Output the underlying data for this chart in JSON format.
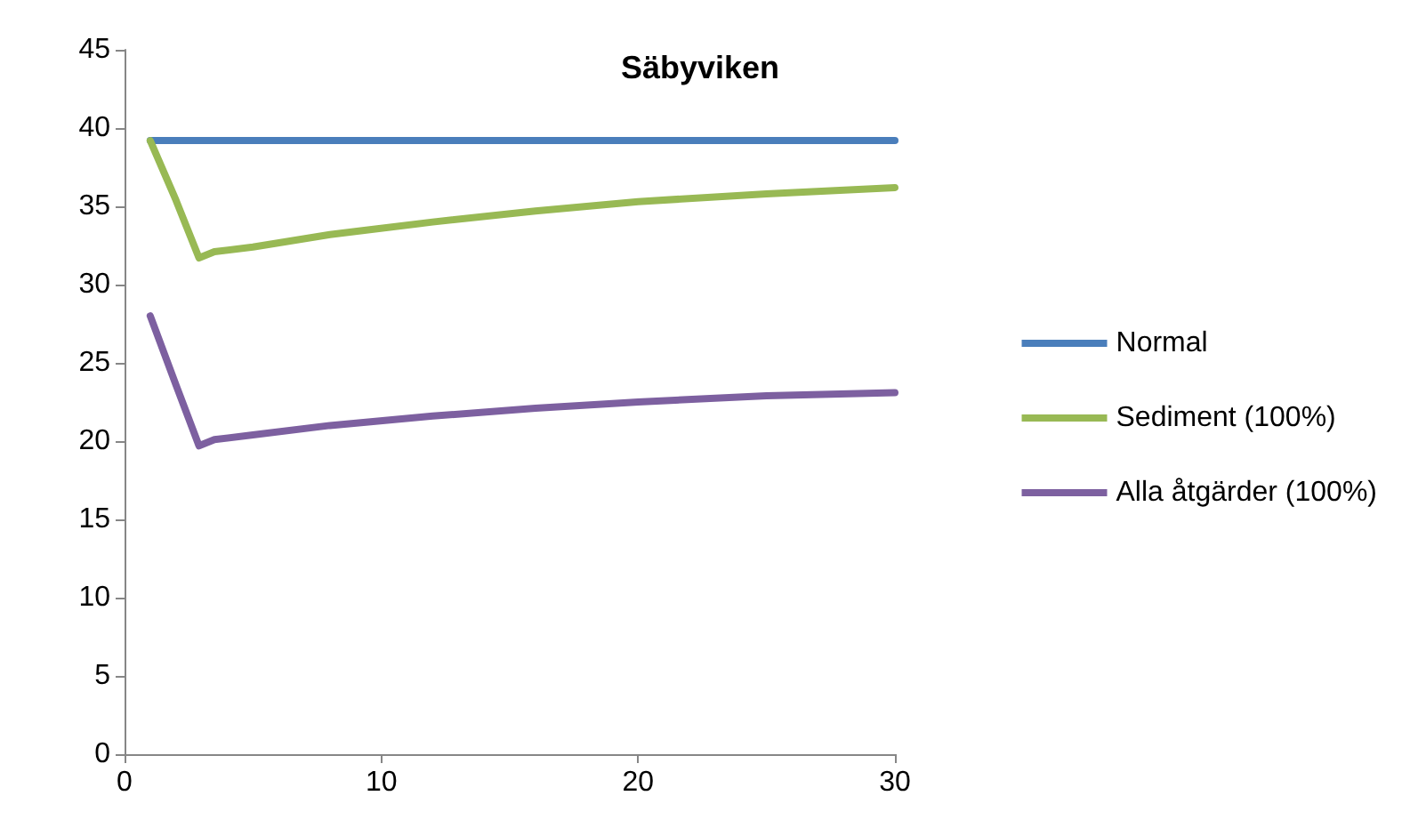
{
  "chart_data": {
    "type": "line",
    "title": "Säbyviken",
    "xlim": [
      0,
      30
    ],
    "xticks": [
      0,
      10,
      20,
      30
    ],
    "ylim": [
      0,
      45
    ],
    "yticks": [
      0,
      5,
      10,
      15,
      20,
      25,
      30,
      35,
      40,
      45
    ],
    "grid": false,
    "legend": "right",
    "marker": "none",
    "line_style": "solid",
    "series": [
      {
        "name": "Normal",
        "color": "#4a7ebb",
        "x": [
          1,
          30
        ],
        "values": [
          39.2,
          39.2
        ]
      },
      {
        "name": "Sediment (100%)",
        "color": "#98b954",
        "x": [
          1,
          2,
          2.9,
          3.5,
          5,
          8,
          12,
          16,
          20,
          25,
          30
        ],
        "values": [
          39.2,
          35.4,
          31.7,
          32.1,
          32.4,
          33.2,
          34.0,
          34.7,
          35.3,
          35.8,
          36.2
        ]
      },
      {
        "name": "Alla åtgärder (100%)",
        "color": "#7d60a0",
        "x": [
          1,
          2,
          2.9,
          3.5,
          5,
          8,
          12,
          16,
          20,
          25,
          30
        ],
        "values": [
          28.0,
          23.6,
          19.7,
          20.1,
          20.4,
          21.0,
          21.6,
          22.1,
          22.5,
          22.9,
          23.1
        ]
      }
    ]
  }
}
